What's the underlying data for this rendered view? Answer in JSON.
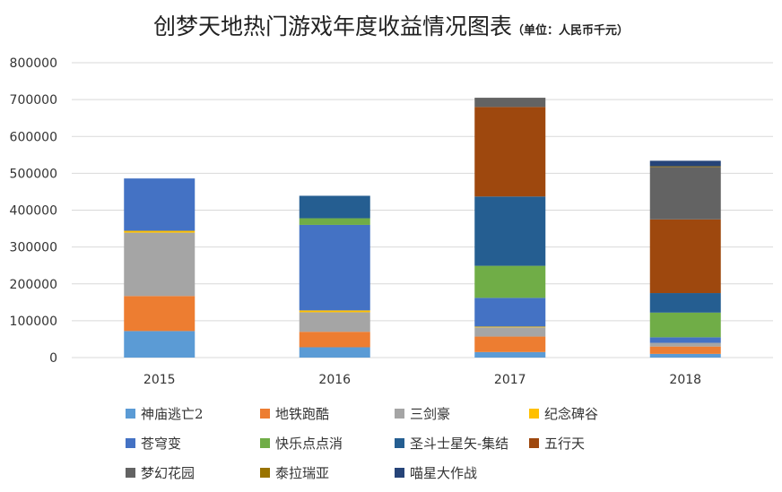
{
  "chart_data": {
    "type": "bar",
    "stacked": true,
    "title": "创梦天地热门游戏年度收益情况图表",
    "unit_note": "（单位：人民币千元）",
    "categories": [
      "2015",
      "2016",
      "2017",
      "2018"
    ],
    "ylim": [
      0,
      800000
    ],
    "yticks": [
      "0",
      "100000",
      "200000",
      "300000",
      "400000",
      "500000",
      "600000",
      "700000",
      "800000"
    ],
    "grid": true,
    "legend_position": "bottom",
    "series": [
      {
        "name": "神庙逃亡2",
        "color": "#5B9BD5",
        "values": [
          72000,
          28000,
          15000,
          10000
        ]
      },
      {
        "name": "地铁跑酷",
        "color": "#ED7D31",
        "values": [
          95000,
          42000,
          42000,
          20000
        ]
      },
      {
        "name": "三剑豪",
        "color": "#A5A5A5",
        "values": [
          172000,
          53000,
          25000,
          10000
        ]
      },
      {
        "name": "纪念碑谷",
        "color": "#FFC000",
        "values": [
          5000,
          5000,
          2000,
          0
        ]
      },
      {
        "name": "苍穹变",
        "color": "#4472C4",
        "values": [
          142000,
          232000,
          78000,
          15000
        ]
      },
      {
        "name": "快乐点点消",
        "color": "#70AD47",
        "values": [
          0,
          18000,
          87000,
          67000
        ]
      },
      {
        "name": "圣斗士星矢-集结",
        "color": "#255E91",
        "values": [
          0,
          61000,
          188000,
          53000
        ]
      },
      {
        "name": "五行天",
        "color": "#9E480E",
        "values": [
          0,
          0,
          243000,
          200000
        ]
      },
      {
        "name": "梦幻花园",
        "color": "#636363",
        "values": [
          0,
          0,
          25000,
          142000
        ]
      },
      {
        "name": "泰拉瑞亚",
        "color": "#997300",
        "values": [
          0,
          0,
          0,
          2000
        ]
      },
      {
        "name": "喵星大作战",
        "color": "#264478",
        "values": [
          0,
          0,
          0,
          15000
        ]
      }
    ]
  }
}
